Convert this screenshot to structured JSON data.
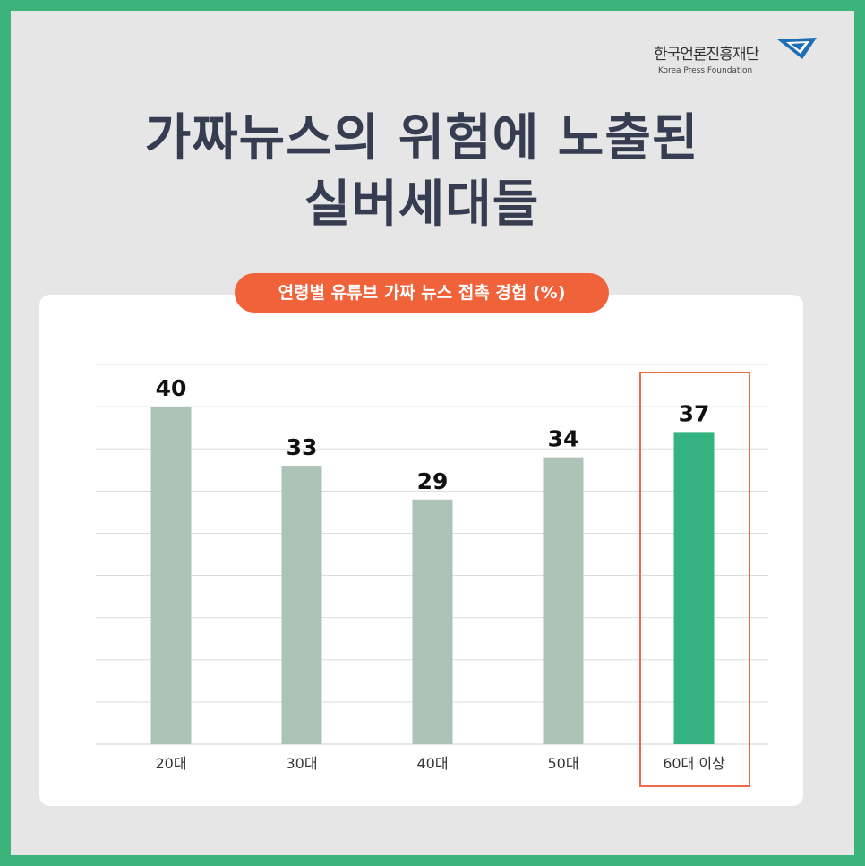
{
  "logo": {
    "name_ko": "한국언론진흥재단",
    "name_en": "Korea Press Foundation"
  },
  "title": {
    "line1": "가짜뉴스의 위험에 노출된",
    "line2": "실버세대들"
  },
  "chart_data": {
    "type": "bar",
    "title": "연령별 유튜브 가짜 뉴스 접촉 경험 (%)",
    "categories": [
      "20대",
      "30대",
      "40대",
      "50대",
      "60대 이상"
    ],
    "values": [
      40,
      33,
      29,
      34,
      37
    ],
    "ylim": [
      0,
      45
    ],
    "grid": true,
    "highlight_index": 4,
    "colors": {
      "bar": "#adc3b8",
      "highlight_bar": "#34b380",
      "highlight_box": "#ee6a49",
      "grid": "#dcdcdc"
    }
  }
}
